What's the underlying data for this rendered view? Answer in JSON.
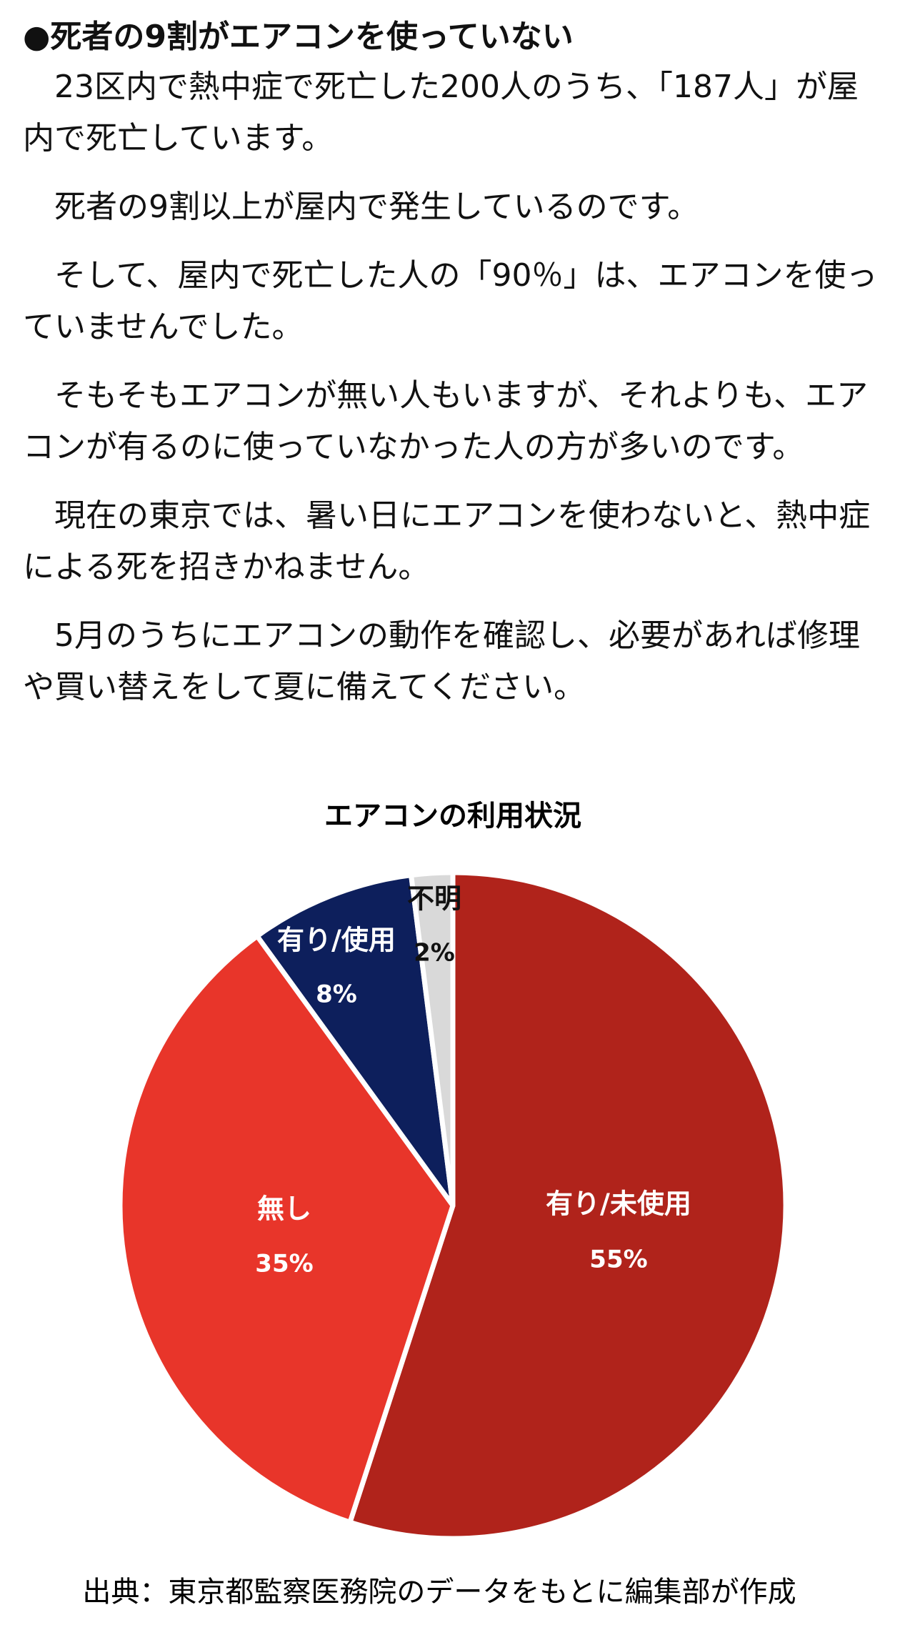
{
  "header": {
    "title": "●死者の9割がエアコンを使っていない"
  },
  "paragraphs": [
    "23区内で熱中症で死亡した200人のうち、「187人」が屋内で死亡しています。",
    "死者の9割以上が屋内で発生しているのです。",
    "そして、屋内で死亡した人の「90％」は、エアコンを使っていませんでした。",
    "そもそもエアコンが無い人もいますが、それよりも、エアコンが有るのに使っていなかった人の方が多いのです。",
    "現在の東京では、暑い日にエアコンを使わないと、熱中症による死を招きかねません。",
    "5月のうちにエアコンの動作を確認し、必要があれば修理や買い替えをして夏に備えてください。"
  ],
  "chart_data": {
    "type": "pie",
    "title": "エアコンの利用状況",
    "categories": [
      "有り/未使用",
      "無し",
      "有り/使用",
      "不明"
    ],
    "values": [
      55,
      35,
      8,
      2
    ],
    "value_labels": [
      "55%",
      "35%",
      "8%",
      "2%"
    ],
    "colors": [
      "#b0231b",
      "#e8352a",
      "#0d1f5c",
      "#d9d9d9"
    ]
  },
  "source": "出典：東京都監察医務院のデータをもとに編集部が作成"
}
